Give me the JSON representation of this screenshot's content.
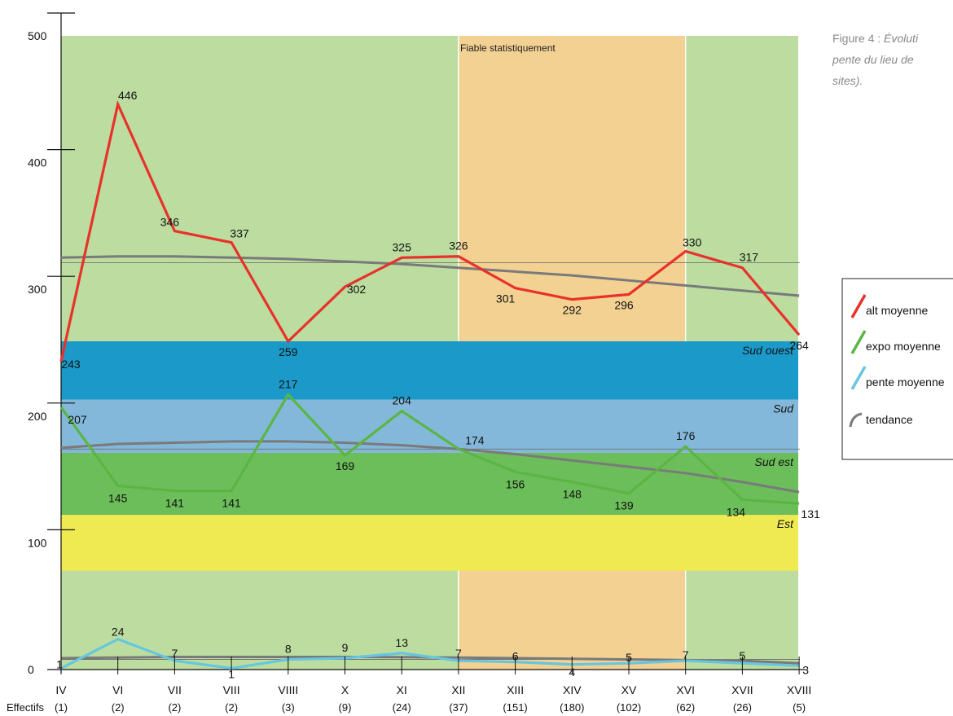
{
  "caption": {
    "line1_prefix": "Figure 4 :",
    "line1_italic": "Évoluti",
    "line2": "pente du lieu de",
    "line3": "sites)."
  },
  "zone_label": "Fiable statistiquement",
  "effectifs_label": "Effectifs",
  "categories": [
    "IV",
    "VI",
    "VII",
    "VIII",
    "VIIII",
    "X",
    "XI",
    "XII",
    "XIII",
    "XIV",
    "XV",
    "XVI",
    "XVII",
    "XVIII"
  ],
  "effectifs": [
    "(1)",
    "(2)",
    "(2)",
    "(2)",
    "(3)",
    "(9)",
    "(24)",
    "(37)",
    "(151)",
    "(180)",
    "(102)",
    "(62)",
    "(26)",
    "(5)"
  ],
  "colors": {
    "background_green": "#bcdd9f",
    "reliable_zone": "#f2d192",
    "band_sud_ouest": "#1b9ac9",
    "band_sud": "#84b8da",
    "band_sud_est": "#6cbe5a",
    "band_est": "#f0ea52",
    "alt": "#e8312b",
    "expo": "#5bb543",
    "pente": "#66c6e0",
    "tendance": "#7a7a7a"
  },
  "chart_data": {
    "type": "line",
    "title": "",
    "xlabel": "",
    "ylabel": "",
    "ylim": [
      0,
      500
    ],
    "y_ticks": [
      0,
      100,
      200,
      300,
      400,
      500
    ],
    "grid": false,
    "legend_position": "right",
    "categories": [
      "IV",
      "VI",
      "VII",
      "VIII",
      "VIIII",
      "X",
      "XI",
      "XII",
      "XIII",
      "XIV",
      "XV",
      "XVI",
      "XVII",
      "XVIII"
    ],
    "reliable_range": [
      "XII",
      "XVI"
    ],
    "bands": [
      {
        "name": "Sud ouest",
        "from": 213,
        "to": 259
      },
      {
        "name": "Sud",
        "from": 171,
        "to": 213
      },
      {
        "name": "Sud est",
        "from": 122,
        "to": 171
      },
      {
        "name": "Est",
        "from": 78,
        "to": 122
      }
    ],
    "series": [
      {
        "name": "alt moyenne",
        "values": [
          243,
          446,
          346,
          337,
          259,
          302,
          325,
          326,
          301,
          292,
          296,
          330,
          317,
          264
        ]
      },
      {
        "name": "expo moyenne",
        "values": [
          207,
          145,
          141,
          141,
          217,
          169,
          204,
          174,
          156,
          148,
          139,
          176,
          134,
          131
        ]
      },
      {
        "name": "pente moyenne",
        "values": [
          1,
          24,
          7,
          1,
          8,
          9,
          13,
          7,
          6,
          4,
          5,
          7,
          5,
          3
        ]
      },
      {
        "name": "tendance",
        "curves": [
          {
            "of": "alt moyenne",
            "values": [
              325,
              326,
              326,
              325,
              324,
              322,
              320,
              317,
              314,
              311,
              307,
              303,
              299,
              295
            ]
          },
          {
            "of": "expo moyenne",
            "values": [
              175,
              178,
              179,
              180,
              180,
              179,
              177,
              174,
              170,
              165,
              160,
              155,
              148,
              140
            ]
          },
          {
            "of": "pente moyenne",
            "values": [
              9,
              9.5,
              10,
              10,
              10,
              10,
              9.8,
              9.5,
              9,
              8.5,
              8,
              7.5,
              7,
              5
            ]
          }
        ]
      }
    ],
    "reference_lines": [
      {
        "value": 321
      },
      {
        "value": 174
      },
      {
        "value": 8
      }
    ]
  }
}
